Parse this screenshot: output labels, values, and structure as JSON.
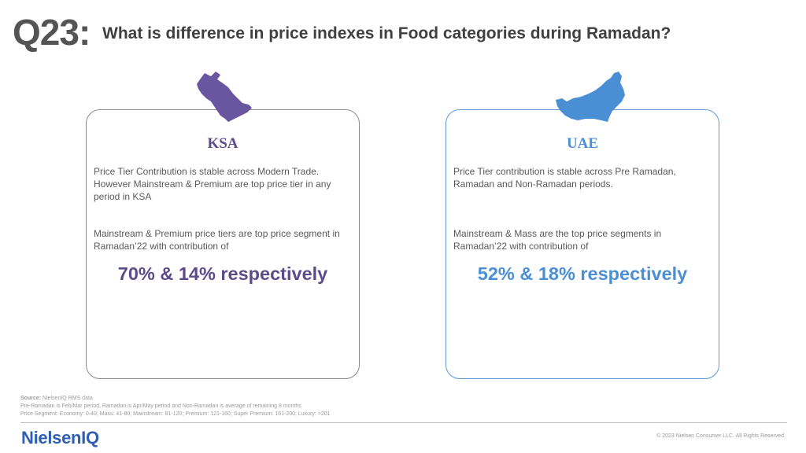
{
  "header": {
    "question_number": "Q23:",
    "title": "What is difference in price indexes in Food categories during Ramadan?"
  },
  "colors": {
    "ksa_accent": "#5c4a8a",
    "uae_accent": "#4a8ed4",
    "logo": "#2e5fb0"
  },
  "cards": {
    "ksa": {
      "icon": "saudi-arabia-map-icon",
      "title": "KSA",
      "paragraph_1": "Price Tier Contribution is stable across Modern Trade. However Mainstream & Premium are top price tier in any period in KSA",
      "paragraph_2": "Mainstream & Premium price tiers are top price segment in Ramadan’22 with contribution of",
      "highlight": "70% & 14% respectively"
    },
    "uae": {
      "icon": "uae-map-icon",
      "title": "UAE",
      "paragraph_1": "Price Tier contribution is stable across Pre Ramadan, Ramadan and Non-Ramadan periods.",
      "paragraph_2": "Mainstream & Mass are the top price segments in Ramadan’22 with contribution of",
      "highlight": "52% & 18% respectively"
    }
  },
  "footer": {
    "source_label": "Source:",
    "source_text": " NielsenIQ RMS data",
    "note_1": "Pre-Ramadan is Feb/Mar period, Ramadan is Apr/May period and Non-Ramadan is average of remaining 8 months",
    "note_2": "Price Segment: Economy: 0-40; Mass: 41-80; Mainstream: 81-120; Premium: 121-160; Super Premium: 161-200; Luxury: >201",
    "logo_text": "NielsenIQ",
    "copyright": "© 2023 Nielsen Consumer LLC. All Rights Reserved."
  }
}
